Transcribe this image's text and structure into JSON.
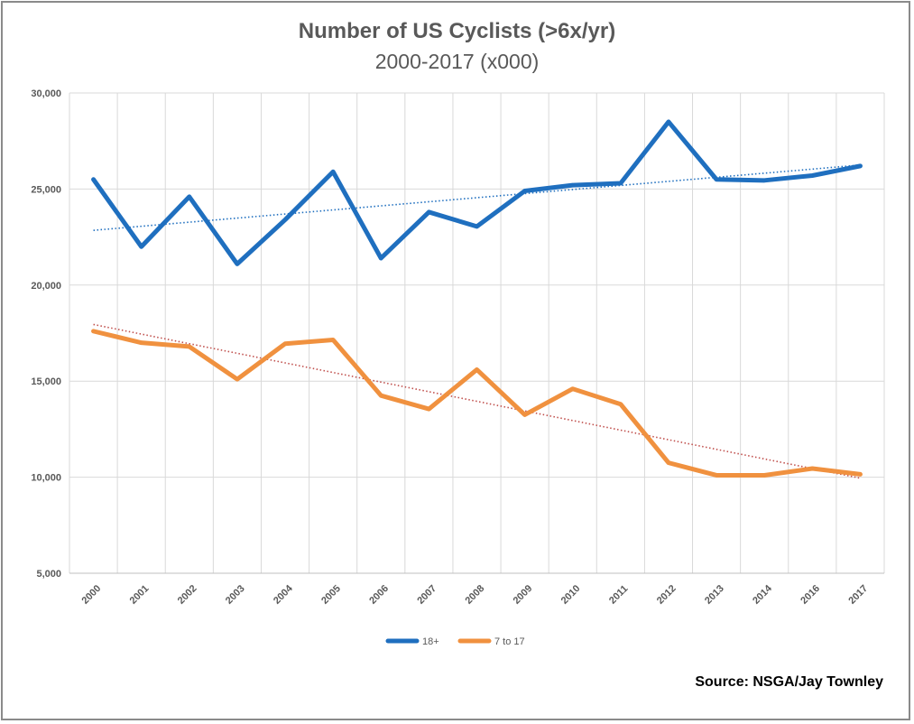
{
  "chart_data": {
    "type": "line",
    "title": "Number of US Cyclists (>6x/yr)",
    "subtitle": "2000-2017 (x000)",
    "categories": [
      "2000",
      "2001",
      "2002",
      "2003",
      "2004",
      "2005",
      "2006",
      "2007",
      "2008",
      "2009",
      "2010",
      "2011",
      "2012",
      "2013",
      "2014",
      "2016",
      "2017"
    ],
    "series": [
      {
        "name": "18+",
        "color": "#1f6fbf",
        "values": [
          25500,
          22000,
          24600,
          21100,
          23400,
          25900,
          21400,
          23800,
          23050,
          24900,
          25200,
          25300,
          28500,
          25500,
          25450,
          25700,
          26200
        ],
        "trendline": [
          22850,
          26250
        ],
        "trend_color": "#1f6fbf"
      },
      {
        "name": "7 to 17",
        "color": "#f0913f",
        "values": [
          17600,
          17000,
          16800,
          15100,
          16950,
          17150,
          14250,
          13550,
          15600,
          13250,
          14600,
          13800,
          10750,
          10100,
          10100,
          10450,
          10150
        ],
        "trendline": [
          17950,
          9950
        ],
        "trend_color": "#c0504d"
      }
    ],
    "y_ticks": [
      "5,000",
      "10,000",
      "15,000",
      "20,000",
      "25,000",
      "30,000"
    ],
    "ylim": [
      5000,
      30000
    ],
    "grid": true,
    "legend_position": "bottom"
  },
  "source": "Source: NSGA/Jay Townley"
}
